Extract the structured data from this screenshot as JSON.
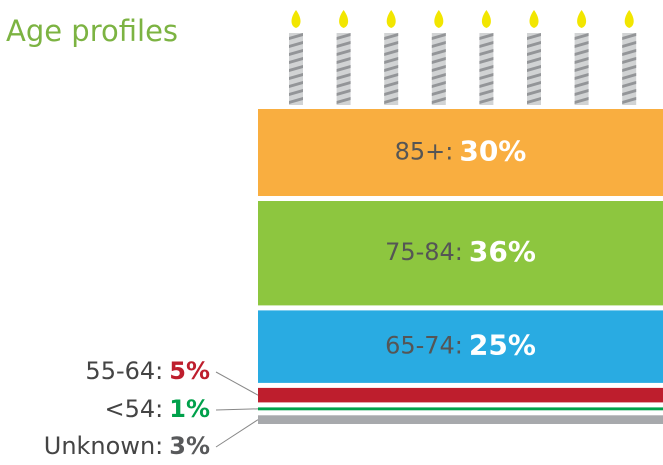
{
  "chart_data": {
    "type": "stacked-cake",
    "title": "Age profiles",
    "categories": [
      "85+:",
      "75-84:",
      "65-74:",
      "55-64:",
      "<54:",
      "Unknown:"
    ],
    "values": [
      30,
      36,
      25,
      5,
      1,
      3
    ],
    "value_labels": [
      "30%",
      "36%",
      "25%",
      "5%",
      "1%",
      "3%"
    ],
    "colors": [
      "#f9ae40",
      "#8dc63f",
      "#29abe2",
      "#be1e2d",
      "#00a14b",
      "#a7a9ac"
    ],
    "label_colors": [
      "#ffffff",
      "#ffffff",
      "#ffffff",
      "#be1e2d",
      "#00a14b",
      "#58595b"
    ]
  }
}
